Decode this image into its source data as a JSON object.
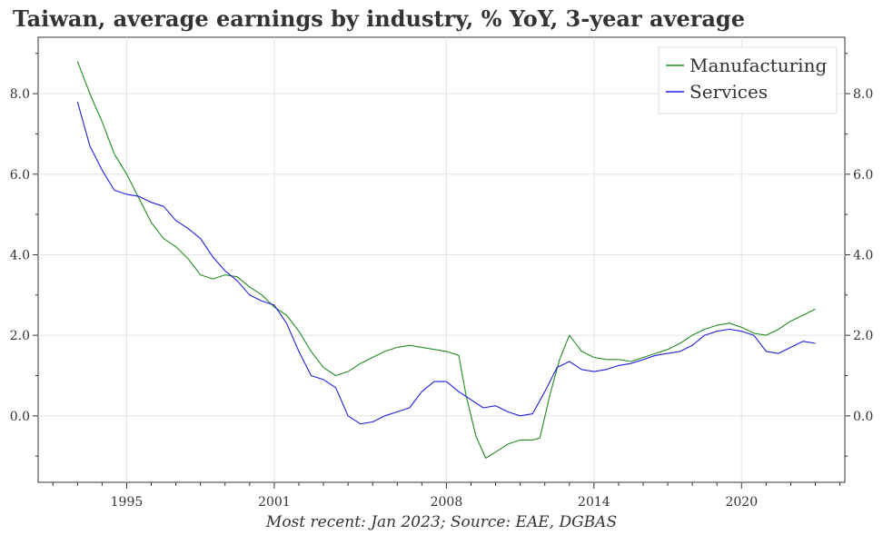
{
  "chart_data": {
    "type": "line",
    "title": "Taiwan, average earnings by industry, % YoY, 3-year average",
    "source": "Most recent: Jan 2023; Source: EAE, DGBAS",
    "xlabel": "",
    "ylabel": "",
    "xlim": [
      1991.4,
      2024.2
    ],
    "ylim": [
      -1.65,
      9.4
    ],
    "x_ticks": [
      1995,
      2001,
      2008,
      2014,
      2020
    ],
    "y_ticks": [
      0.0,
      2.0,
      4.0,
      6.0,
      8.0
    ],
    "y_tick_labels": [
      "0.0",
      "2.0",
      "4.0",
      "6.0",
      "8.0"
    ],
    "grid": true,
    "legend_position": "top-right",
    "series": [
      {
        "name": "Manufacturing",
        "color": "#228B22",
        "x": [
          1993.0,
          1993.5,
          1994.0,
          1994.5,
          1995.0,
          1995.5,
          1996.0,
          1996.5,
          1997.0,
          1997.5,
          1998.0,
          1998.5,
          1999.0,
          1999.5,
          2000.0,
          2000.5,
          2001.0,
          2001.5,
          2002.0,
          2002.5,
          2003.0,
          2003.5,
          2004.0,
          2004.5,
          2005.0,
          2005.5,
          2006.0,
          2006.5,
          2007.0,
          2007.5,
          2008.0,
          2008.5,
          2008.8,
          2009.2,
          2009.6,
          2010.0,
          2010.5,
          2011.0,
          2011.5,
          2011.8,
          2012.2,
          2012.6,
          2013.0,
          2013.5,
          2014.0,
          2014.5,
          2015.0,
          2015.5,
          2016.0,
          2016.5,
          2017.0,
          2017.5,
          2018.0,
          2018.5,
          2019.0,
          2019.5,
          2020.0,
          2020.5,
          2021.0,
          2021.5,
          2022.0,
          2022.5,
          2023.0
        ],
        "values": [
          8.8,
          8.0,
          7.3,
          6.5,
          6.0,
          5.4,
          4.8,
          4.4,
          4.2,
          3.9,
          3.5,
          3.4,
          3.5,
          3.45,
          3.2,
          3.0,
          2.7,
          2.5,
          2.1,
          1.6,
          1.2,
          1.0,
          1.1,
          1.3,
          1.45,
          1.6,
          1.7,
          1.75,
          1.7,
          1.65,
          1.6,
          1.5,
          0.5,
          -0.5,
          -1.05,
          -0.9,
          -0.7,
          -0.6,
          -0.6,
          -0.55,
          0.5,
          1.4,
          2.0,
          1.6,
          1.45,
          1.4,
          1.4,
          1.35,
          1.45,
          1.55,
          1.65,
          1.8,
          2.0,
          2.15,
          2.25,
          2.3,
          2.2,
          2.05,
          2.0,
          2.15,
          2.35,
          2.5,
          2.65
        ]
      },
      {
        "name": "Services",
        "color": "#1f1fe0",
        "x": [
          1993.0,
          1993.5,
          1994.0,
          1994.5,
          1995.0,
          1995.5,
          1996.0,
          1996.5,
          1997.0,
          1997.5,
          1998.0,
          1998.5,
          1999.0,
          1999.5,
          2000.0,
          2000.5,
          2001.0,
          2001.5,
          2002.0,
          2002.5,
          2003.0,
          2003.5,
          2004.0,
          2004.5,
          2005.0,
          2005.5,
          2006.0,
          2006.5,
          2007.0,
          2007.5,
          2008.0,
          2008.5,
          2009.0,
          2009.5,
          2010.0,
          2010.5,
          2011.0,
          2011.5,
          2012.0,
          2012.5,
          2013.0,
          2013.5,
          2014.0,
          2014.5,
          2015.0,
          2015.5,
          2016.0,
          2016.5,
          2017.0,
          2017.5,
          2018.0,
          2018.5,
          2019.0,
          2019.5,
          2020.0,
          2020.5,
          2021.0,
          2021.5,
          2022.0,
          2022.5,
          2023.0
        ],
        "values": [
          7.8,
          6.7,
          6.1,
          5.6,
          5.5,
          5.45,
          5.3,
          5.2,
          4.85,
          4.65,
          4.4,
          3.95,
          3.6,
          3.35,
          3.0,
          2.85,
          2.75,
          2.3,
          1.6,
          1.0,
          0.9,
          0.7,
          0.0,
          -0.2,
          -0.15,
          0.0,
          0.1,
          0.2,
          0.6,
          0.85,
          0.85,
          0.6,
          0.4,
          0.2,
          0.25,
          0.1,
          0.0,
          0.05,
          0.6,
          1.2,
          1.35,
          1.15,
          1.1,
          1.15,
          1.25,
          1.3,
          1.4,
          1.5,
          1.55,
          1.6,
          1.75,
          2.0,
          2.1,
          2.15,
          2.1,
          2.0,
          1.6,
          1.55,
          1.7,
          1.85,
          1.8
        ]
      }
    ]
  }
}
